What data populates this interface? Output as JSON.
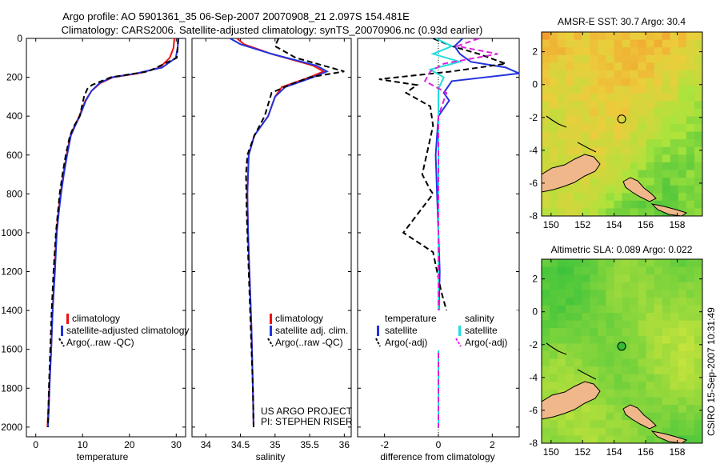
{
  "header": {
    "title_line1": "Argo profile: AO 5901361_35 06-Sep-2007 20070908_21 2.097S 154.481E",
    "title_line2": "Climatology: CARS2006. Satellite-adjusted climatology: synTS_20070906.nc (0.93d earlier)"
  },
  "credit": {
    "text": "CSIRO 15-Sep-2007 10:31:49"
  },
  "colors": {
    "climatology": "#ee1111",
    "satellite_adj": "#2233dd",
    "argo": "#000000",
    "sat_salinity": "#22dddd",
    "argo_adj_salinity": "#dd22dd",
    "land": "#f0b88a"
  },
  "panels": {
    "temperature": {
      "legend": [
        "climatology",
        "satellite-adjusted climatology",
        "Argo(..raw -QC)"
      ]
    },
    "salinity": {
      "legend": [
        "climatology",
        "satellite adj. clim.",
        "Argo(..raw -QC)"
      ],
      "note_line1": "US ARGO PROJECT",
      "note_line2": "PI: STEPHEN RISER"
    },
    "difference": {
      "legend_left_title": "temperature",
      "legend_right_title": "salinity",
      "legend_left": [
        "satellite",
        "Argo(-adj)"
      ],
      "legend_right": [
        "satellite",
        "Argo(-adj)"
      ]
    }
  },
  "chart_data": [
    {
      "id": "temperature",
      "type": "line",
      "xlabel": "temperature",
      "ylabel": "",
      "xlim": [
        -2,
        32
      ],
      "ylim": [
        2050,
        0
      ],
      "xticks": [
        0,
        10,
        20,
        30
      ],
      "yticks": [
        0,
        200,
        400,
        600,
        800,
        1000,
        1200,
        1400,
        1600,
        1800,
        2000
      ],
      "series": [
        {
          "name": "climatology",
          "color": "#ee1111",
          "x": [
            29.6,
            29.4,
            28.6,
            26.5,
            22.0,
            16.5,
            13.8,
            11.9,
            10.6,
            9.3,
            8.3,
            7.4,
            6.6,
            5.9,
            5.3,
            4.8,
            4.4,
            4.0,
            3.6,
            3.3,
            3.0,
            2.7,
            2.5
          ],
          "depth": [
            0,
            50,
            100,
            150,
            180,
            200,
            230,
            270,
            320,
            400,
            450,
            500,
            600,
            700,
            800,
            900,
            1000,
            1200,
            1400,
            1600,
            1750,
            1900,
            2000
          ]
        },
        {
          "name": "satellite-adjusted climatology",
          "color": "#2233dd",
          "x": [
            30.5,
            30.3,
            29.9,
            27.0,
            21.5,
            16.3,
            13.6,
            11.9,
            10.7,
            9.4,
            8.4,
            7.5,
            6.7,
            6.0,
            5.4,
            4.9,
            4.5,
            4.1,
            3.6,
            3.3,
            3.0,
            2.8,
            2.6
          ],
          "depth": [
            0,
            50,
            100,
            150,
            180,
            200,
            230,
            270,
            320,
            400,
            450,
            500,
            600,
            700,
            800,
            900,
            1000,
            1200,
            1400,
            1600,
            1750,
            1900,
            2000
          ]
        },
        {
          "name": "Argo(..raw -QC)",
          "color": "#000000",
          "x": [
            30.4,
            30.3,
            30.1,
            24.0,
            16.0,
            12.0,
            11.0,
            10.3,
            9.4,
            8.2,
            7.3,
            6.4,
            5.7,
            5.1,
            4.7,
            4.3,
            3.8,
            3.4,
            3.1,
            2.8,
            2.6
          ],
          "depth": [
            0,
            50,
            100,
            170,
            200,
            240,
            260,
            300,
            400,
            450,
            500,
            600,
            700,
            800,
            900,
            1000,
            1200,
            1400,
            1600,
            1800,
            2000
          ]
        }
      ]
    },
    {
      "id": "salinity",
      "type": "line",
      "xlabel": "salinity",
      "ylabel": "",
      "xlim": [
        33.8,
        36.1
      ],
      "ylim": [
        2050,
        0
      ],
      "xticks": [
        34,
        34.5,
        35,
        35.5,
        36
      ],
      "series": [
        {
          "name": "climatology",
          "color": "#ee1111",
          "x": [
            34.45,
            34.55,
            34.95,
            35.55,
            35.7,
            35.5,
            35.1,
            35.0,
            34.9,
            34.8,
            34.7,
            34.62,
            34.6,
            34.61,
            34.63,
            34.66,
            34.68,
            34.69
          ],
          "depth": [
            0,
            30,
            80,
            140,
            170,
            200,
            250,
            300,
            400,
            450,
            500,
            600,
            800,
            1000,
            1200,
            1500,
            1800,
            2000
          ]
        },
        {
          "name": "satellite adj. clim.",
          "color": "#2233dd",
          "x": [
            34.35,
            34.5,
            34.95,
            35.6,
            35.75,
            35.55,
            35.15,
            35.0,
            34.9,
            34.8,
            34.7,
            34.62,
            34.6,
            34.61,
            34.63,
            34.66,
            34.68,
            34.69
          ],
          "depth": [
            0,
            30,
            80,
            140,
            170,
            200,
            250,
            300,
            400,
            450,
            500,
            600,
            800,
            1000,
            1200,
            1500,
            1800,
            2000
          ]
        },
        {
          "name": "Argo(..raw -QC)",
          "color": "#000000",
          "x": [
            35.05,
            35.0,
            35.3,
            35.8,
            36.0,
            35.5,
            35.2,
            34.95,
            34.85,
            34.7,
            34.6,
            34.58,
            34.59,
            34.6,
            34.62,
            34.65,
            34.68,
            34.69
          ],
          "depth": [
            0,
            40,
            100,
            150,
            170,
            200,
            240,
            280,
            400,
            500,
            600,
            700,
            900,
            1000,
            1200,
            1500,
            1800,
            2000
          ]
        }
      ]
    },
    {
      "id": "difference",
      "type": "line",
      "xlabel": "difference from climatology",
      "ylabel": "",
      "xlim": [
        -3,
        3
      ],
      "ylim": [
        2050,
        0
      ],
      "xticks": [
        -2,
        0,
        2
      ],
      "series": [
        {
          "name": "temperature satellite",
          "color": "#2233dd",
          "x": [
            0.9,
            0.6,
            0.8,
            1.2,
            2.5,
            3.0,
            0.5,
            0.2,
            0.4,
            0.0,
            -0.1,
            -0.05,
            0.0,
            0.05,
            0.0,
            0.0,
            0.0
          ],
          "depth": [
            0,
            40,
            80,
            120,
            150,
            180,
            220,
            280,
            320,
            400,
            600,
            800,
            1000,
            1200,
            1500,
            1800,
            2000
          ]
        },
        {
          "name": "temperature Argo(-adj)",
          "color": "#000000",
          "x": [
            -0.2,
            0.5,
            1.5,
            2.5,
            0.5,
            -2.2,
            -0.8,
            -1.2,
            -0.3,
            -0.2,
            -0.6,
            -0.3,
            -0.2,
            -1.3,
            -0.2,
            0.1,
            0.3,
            0.0,
            0.0,
            0.0
          ],
          "depth": [
            0,
            40,
            80,
            130,
            170,
            210,
            240,
            280,
            350,
            450,
            700,
            780,
            800,
            1000,
            1100,
            1300,
            1400,
            1500,
            1800,
            2000
          ]
        },
        {
          "name": "salinity satellite",
          "color": "#22dddd",
          "x": [
            -0.1,
            0.5,
            -0.2,
            0.8,
            -0.3,
            0.2,
            0.0,
            0.0,
            0.0,
            0.0,
            0.0,
            0.0
          ],
          "depth": [
            0,
            40,
            80,
            120,
            160,
            200,
            260,
            400,
            800,
            1200,
            1600,
            2000
          ]
        },
        {
          "name": "salinity Argo(-adj)",
          "color": "#dd22dd",
          "x": [
            1.5,
            0.7,
            2.2,
            0.2,
            -0.3,
            -0.5,
            0.3,
            0.0,
            0.0,
            0.0,
            0.0,
            0.0
          ],
          "depth": [
            0,
            40,
            80,
            130,
            170,
            220,
            280,
            400,
            800,
            1200,
            1600,
            2000
          ]
        }
      ]
    },
    {
      "id": "sst_map",
      "type": "heatmap",
      "title": "AMSR-E SST: 30.7  Argo: 30.4",
      "xlim": [
        149.4,
        159.6
      ],
      "ylim": [
        -8,
        3.2
      ],
      "xticks": [
        150,
        152,
        154,
        156,
        158
      ],
      "yticks": [
        2,
        0,
        -2,
        -4,
        -6,
        -8
      ],
      "marker": {
        "lon": 154.481,
        "lat": -2.097,
        "fill": "none"
      }
    },
    {
      "id": "sla_map",
      "type": "heatmap",
      "title": "Altimetric SLA: 0.089  Argo: 0.022",
      "xlim": [
        149.4,
        159.6
      ],
      "ylim": [
        -8,
        3.2
      ],
      "xticks": [
        150,
        152,
        154,
        156,
        158
      ],
      "yticks": [
        2,
        0,
        -2,
        -4,
        -6,
        -8
      ],
      "marker": {
        "lon": 154.481,
        "lat": -2.097,
        "fill": "#33bb33"
      }
    }
  ]
}
